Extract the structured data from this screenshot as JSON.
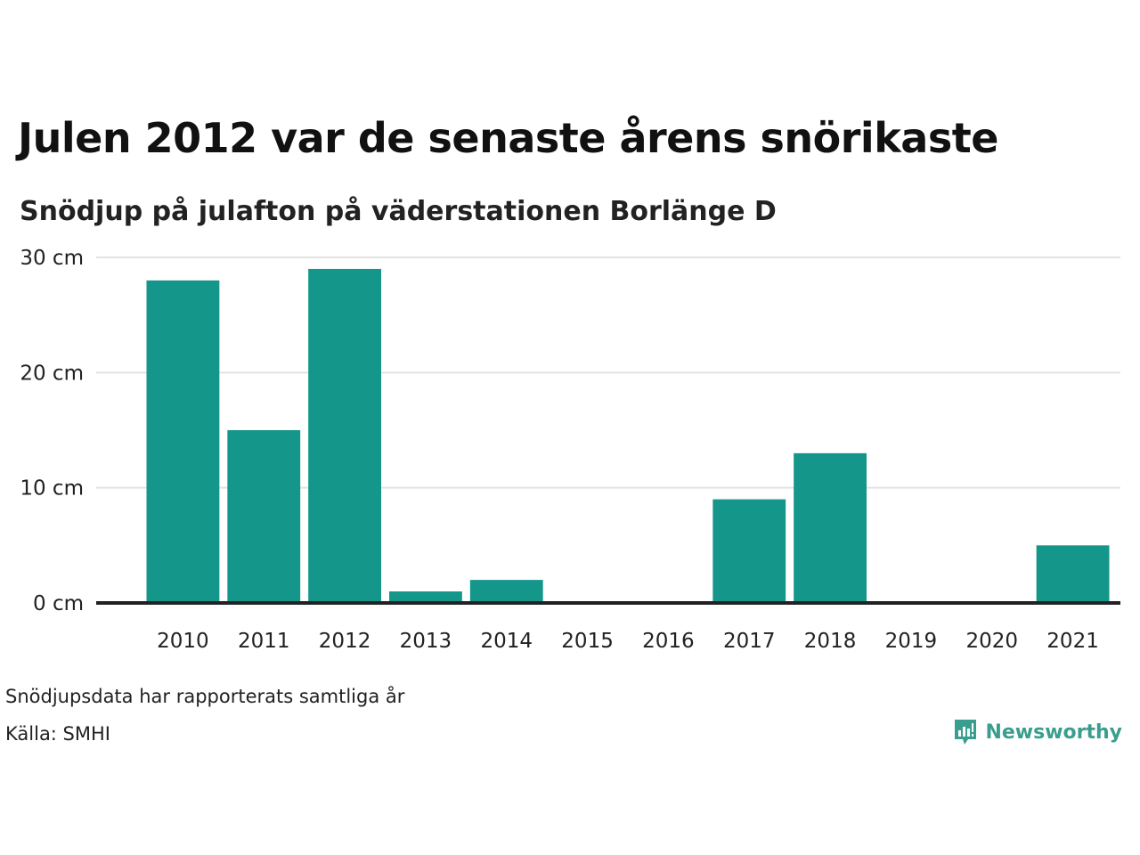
{
  "title": "Julen 2012 var de senaste årens snörikaste",
  "subtitle": "Snödjup på julafton på väderstationen Borlänge D",
  "footer": {
    "note": "Snödjupsdata har rapporterats samtliga år",
    "source": "Källa: SMHI"
  },
  "logo": {
    "text": "Newsworthy",
    "icon": "bar-chart-speech-bubble-icon"
  },
  "colors": {
    "bar": "#14968a",
    "grid": "#e3e3e3",
    "baseline": "#222222",
    "logo": "#3a9e8e"
  },
  "chart_data": {
    "type": "bar",
    "categories": [
      "2010",
      "2011",
      "2012",
      "2013",
      "2014",
      "2015",
      "2016",
      "2017",
      "2018",
      "2019",
      "2020",
      "2021"
    ],
    "values": [
      28,
      15,
      29,
      1,
      2,
      0,
      0,
      9,
      13,
      0,
      0,
      5
    ],
    "y_ticks": [
      0,
      10,
      20,
      30
    ],
    "y_tick_labels": [
      "0 cm",
      "10 cm",
      "20 cm",
      "30 cm"
    ],
    "ylim": [
      0,
      30
    ],
    "grid": true,
    "legend": "none"
  }
}
